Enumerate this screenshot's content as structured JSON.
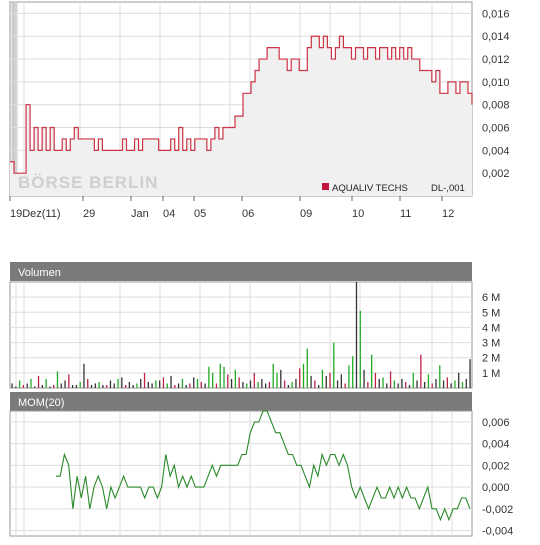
{
  "chart_data": [
    {
      "type": "area",
      "instrument": "AQUALIV TECHS",
      "legend_suffix": "DL-,001",
      "watermark": "BÖRSE BERLIN",
      "legend_color": "#c0143c",
      "line_color": "#cc3344",
      "ylim": [
        0.0,
        0.017
      ],
      "y_ticks": [
        "0,016",
        "0,014",
        "0,012",
        "0,010",
        "0,008",
        "0,006",
        "0,004",
        "0,002"
      ],
      "x_ticks": [
        "19Dez(11)",
        "29",
        "Jan",
        "04",
        "05",
        "06",
        "09",
        "10",
        "11",
        "12"
      ],
      "series": [
        {
          "values": [
            0.003,
            0.002,
            0.002,
            0.002,
            0.008,
            0.004,
            0.006,
            0.004,
            0.006,
            0.004,
            0.006,
            0.004,
            0.004,
            0.005,
            0.004,
            0.005,
            0.006,
            0.005,
            0.005,
            0.005,
            0.005,
            0.004,
            0.005,
            0.004,
            0.004,
            0.004,
            0.004,
            0.004,
            0.005,
            0.004,
            0.004,
            0.005,
            0.004,
            0.005,
            0.005,
            0.005,
            0.005,
            0.004,
            0.004,
            0.004,
            0.005,
            0.004,
            0.006,
            0.004,
            0.005,
            0.004,
            0.005,
            0.005,
            0.005,
            0.004,
            0.005,
            0.006,
            0.005,
            0.006,
            0.006,
            0.006,
            0.007,
            0.007,
            0.009,
            0.009,
            0.01,
            0.011,
            0.012,
            0.012,
            0.013,
            0.013,
            0.013,
            0.012,
            0.012,
            0.011,
            0.012,
            0.012,
            0.011,
            0.011,
            0.013,
            0.014,
            0.014,
            0.013,
            0.014,
            0.013,
            0.012,
            0.013,
            0.014,
            0.013,
            0.013,
            0.012,
            0.013,
            0.013,
            0.012,
            0.013,
            0.013,
            0.012,
            0.013,
            0.013,
            0.012,
            0.013,
            0.012,
            0.013,
            0.012,
            0.013,
            0.012,
            0.012,
            0.011,
            0.011,
            0.011,
            0.01,
            0.011,
            0.009,
            0.009,
            0.01,
            0.01,
            0.009,
            0.01,
            0.01,
            0.009,
            0.008
          ]
        }
      ]
    },
    {
      "type": "bar",
      "title": "Volumen",
      "ylim": [
        0,
        7
      ],
      "unit": "M",
      "y_ticks": [
        "6 M",
        "5 M",
        "4 M",
        "3 M",
        "2 M",
        "1 M"
      ],
      "up_color": "#22aa22",
      "down_color": "#bb2244",
      "neutral_color": "#333333",
      "values": [
        0.3,
        0.1,
        0.5,
        0.2,
        0.3,
        0.6,
        0.1,
        0.8,
        0.2,
        0.6,
        0.1,
        0.2,
        1.1,
        0.3,
        0.5,
        0.9,
        0.2,
        0.2,
        0.4,
        1.6,
        0.6,
        0.2,
        0.3,
        0.4,
        0.2,
        0.2,
        0.5,
        0.3,
        0.6,
        0.7,
        0.2,
        0.4,
        0.2,
        0.3,
        0.6,
        1.0,
        0.4,
        0.3,
        0.5,
        0.5,
        0.7,
        0.3,
        0.8,
        0.2,
        0.3,
        0.6,
        0.2,
        0.3,
        0.7,
        0.6,
        0.4,
        0.3,
        1.4,
        1.0,
        0.3,
        1.6,
        1.4,
        0.9,
        0.6,
        1.2,
        0.7,
        0.4,
        0.3,
        0.5,
        1.0,
        0.4,
        0.6,
        0.3,
        0.4,
        1.6,
        1.0,
        1.2,
        0.5,
        0.2,
        0.4,
        0.6,
        1.3,
        1.6,
        2.6,
        0.8,
        0.5,
        0.2,
        1.2,
        0.8,
        1.0,
        3.0,
        0.5,
        0.9,
        0.3,
        1.5,
        2.1,
        7.0,
        5.1,
        1.2,
        0.4,
        2.2,
        1.0,
        0.6,
        0.7,
        0.3,
        1.1,
        0.5,
        0.3,
        0.6,
        0.4,
        0.2,
        1.0,
        0.5,
        2.2,
        0.4,
        0.9,
        0.3,
        0.6,
        1.5,
        0.5,
        0.7,
        0.3,
        0.5,
        1.0,
        0.4,
        0.6,
        1.9
      ],
      "directions": [
        "n",
        "n",
        "u",
        "d",
        "n",
        "u",
        "n",
        "d",
        "n",
        "u",
        "n",
        "d",
        "u",
        "n",
        "n",
        "d",
        "n",
        "n",
        "u",
        "n",
        "d",
        "n",
        "n",
        "u",
        "n",
        "d",
        "n",
        "n",
        "u",
        "n",
        "d",
        "n",
        "n",
        "u",
        "n",
        "d",
        "n",
        "n",
        "u",
        "n",
        "d",
        "u",
        "n",
        "d",
        "n",
        "u",
        "n",
        "d",
        "n",
        "u",
        "d",
        "n",
        "u",
        "u",
        "d",
        "u",
        "u",
        "d",
        "n",
        "u",
        "d",
        "n",
        "u",
        "n",
        "d",
        "u",
        "n",
        "n",
        "d",
        "u",
        "u",
        "n",
        "d",
        "n",
        "u",
        "n",
        "d",
        "u",
        "u",
        "n",
        "d",
        "n",
        "u",
        "n",
        "d",
        "u",
        "n",
        "n",
        "d",
        "u",
        "u",
        "n",
        "u",
        "n",
        "d",
        "u",
        "d",
        "n",
        "u",
        "n",
        "d",
        "u",
        "n",
        "n",
        "d",
        "n",
        "u",
        "n",
        "d",
        "n",
        "u",
        "d",
        "n",
        "u",
        "n",
        "d",
        "n",
        "u",
        "n",
        "u"
      ]
    },
    {
      "type": "line",
      "title": "MOM(20)",
      "line_color": "#2a8a2a",
      "ylim": [
        -0.0045,
        0.007
      ],
      "y_ticks": [
        "0,006",
        "0,004",
        "0,002",
        "0,000",
        "-0,002",
        "-0,004"
      ],
      "values": [
        0.001,
        0.001,
        0.003,
        0.002,
        -0.002,
        0.001,
        -0.001,
        0.001,
        -0.002,
        0.0,
        0.001,
        0.0,
        -0.002,
        0.0,
        -0.001,
        0.0,
        0.001,
        0.0,
        0.0,
        0.0,
        0.0,
        -0.001,
        0.0,
        0.0,
        -0.001,
        0.0,
        0.003,
        0.001,
        0.002,
        0.0,
        0.001,
        0.0,
        0.001,
        0.0,
        0.0,
        0.0,
        0.001,
        0.002,
        0.001,
        0.002,
        0.002,
        0.002,
        0.002,
        0.002,
        0.003,
        0.003,
        0.005,
        0.006,
        0.006,
        0.007,
        0.007,
        0.006,
        0.005,
        0.005,
        0.004,
        0.003,
        0.003,
        0.002,
        0.002,
        0.001,
        0.0,
        0.002,
        0.001,
        0.003,
        0.002,
        0.003,
        0.003,
        0.002,
        0.003,
        0.002,
        0.0,
        -0.001,
        0.0,
        -0.001,
        -0.002,
        -0.001,
        0.0,
        -0.001,
        -0.001,
        0.0,
        -0.001,
        0.0,
        -0.001,
        0.0,
        -0.001,
        -0.001,
        -0.002,
        -0.001,
        0.0,
        -0.002,
        -0.002,
        -0.003,
        -0.002,
        -0.003,
        -0.002,
        -0.002,
        -0.001,
        -0.001,
        -0.002
      ]
    }
  ]
}
